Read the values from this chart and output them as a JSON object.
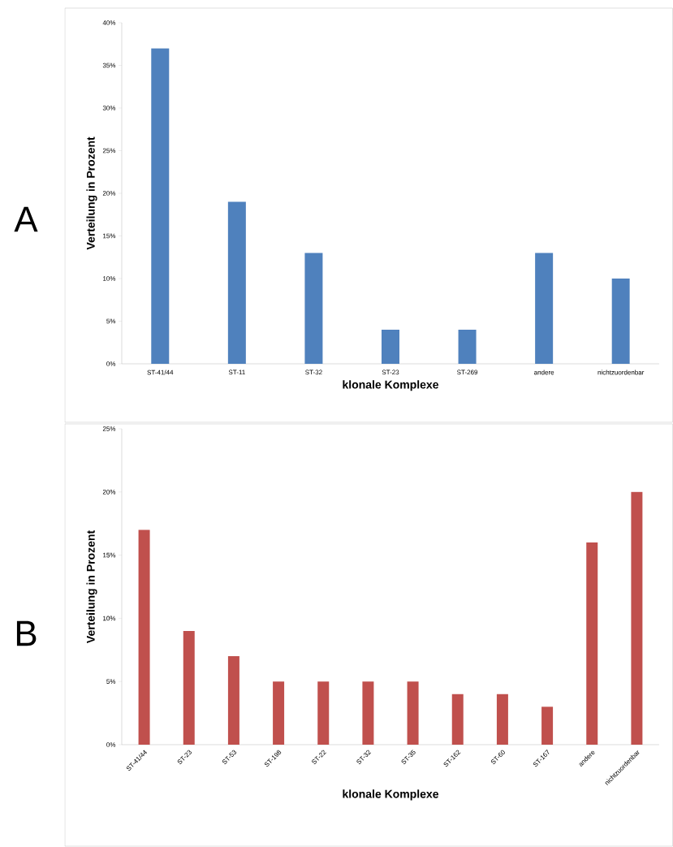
{
  "chart_data": [
    {
      "type": "bar",
      "annotations": [
        "A"
      ],
      "ylabel": "Verteilung in Prozent",
      "xlabel": "klonale Komplexe",
      "categories": [
        "ST-41/44",
        "ST-11",
        "ST-32",
        "ST-23",
        "ST-269",
        "andere",
        "nichtzuordenbar"
      ],
      "values": [
        37,
        19,
        13,
        4,
        4,
        13,
        10
      ],
      "color": "#4f81bd",
      "ylim": [
        0,
        40
      ],
      "yticks": [
        {
          "value": 0,
          "label": "0%"
        },
        {
          "value": 5,
          "label": "5%"
        },
        {
          "value": 10,
          "label": "10%"
        },
        {
          "value": 15,
          "label": "15%"
        },
        {
          "value": 20,
          "label": "20%"
        },
        {
          "value": 25,
          "label": "25%"
        },
        {
          "value": 30,
          "label": "30%"
        },
        {
          "value": 35,
          "label": "35%"
        },
        {
          "value": 40,
          "label": "40%"
        }
      ]
    },
    {
      "type": "bar",
      "annotations": [
        "B"
      ],
      "ylabel": "Verteilung in Prozent",
      "xlabel": "klonale Komplexe",
      "categories": [
        "ST-41/44",
        "ST-23",
        "ST-53",
        "ST-198",
        "ST-22",
        "ST-32",
        "ST-35",
        "ST-162",
        "ST-60",
        "ST-167",
        "andere",
        "nichtzuordenbar"
      ],
      "values": [
        17,
        9,
        7,
        5,
        5,
        5,
        5,
        4,
        4,
        3,
        16,
        20
      ],
      "color": "#c0504d",
      "ylim": [
        0,
        25
      ],
      "yticks": [
        {
          "value": 0,
          "label": "0%"
        },
        {
          "value": 5,
          "label": "5%"
        },
        {
          "value": 10,
          "label": "10%"
        },
        {
          "value": 15,
          "label": "15%"
        },
        {
          "value": 20,
          "label": "20%"
        },
        {
          "value": 25,
          "label": "25%"
        }
      ]
    }
  ]
}
